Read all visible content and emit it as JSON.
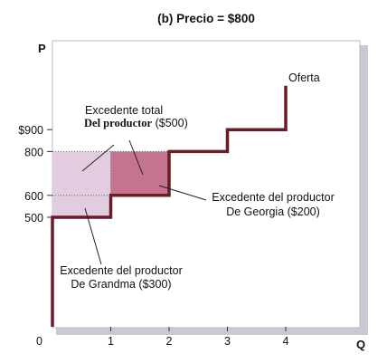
{
  "chart_data": {
    "type": "step",
    "title": "(b) Precio = $800",
    "xlabel": "Q",
    "ylabel": "P",
    "origin_label": "0",
    "xlim": [
      0,
      4.5
    ],
    "ylim": [
      0,
      1150
    ],
    "x_ticks": [
      {
        "value": 1,
        "label": "1"
      },
      {
        "value": 2,
        "label": "2"
      },
      {
        "value": 3,
        "label": "3"
      },
      {
        "value": 4,
        "label": "4"
      }
    ],
    "y_ticks": [
      {
        "value": 500,
        "label": "500"
      },
      {
        "value": 600,
        "label": "600"
      },
      {
        "value": 800,
        "label": "800"
      },
      {
        "value": 900,
        "label": "$900"
      }
    ],
    "price": 800,
    "series": [
      {
        "name": "Oferta",
        "points": [
          [
            0,
            0
          ],
          [
            0,
            500
          ],
          [
            1,
            500
          ],
          [
            1,
            600
          ],
          [
            2,
            600
          ],
          [
            2,
            800
          ],
          [
            3,
            800
          ],
          [
            3,
            900
          ],
          [
            4,
            900
          ],
          [
            4,
            1100
          ]
        ]
      }
    ],
    "surplus_areas": [
      {
        "x": [
          0,
          1
        ],
        "y": [
          500,
          800
        ],
        "color": "#e2cde0"
      },
      {
        "x": [
          1,
          2
        ],
        "y": [
          600,
          800
        ],
        "color": "#c5748f"
      }
    ],
    "annotations": {
      "total_line1": "Excedente total",
      "total_line2a": "Del productor",
      "total_line2b": " ($500)",
      "georgia_line1": "Excedente del productor",
      "georgia_line2": "De Georgia ($200)",
      "grandma_line1": "Excedente del productor",
      "grandma_line2": "De Grandma ($300)"
    },
    "colors": {
      "supply": "#6b1c26",
      "grid_dotted": "#666666",
      "frame_shadow": "#c8c9d4",
      "axis": "#333333"
    },
    "grid": false
  }
}
